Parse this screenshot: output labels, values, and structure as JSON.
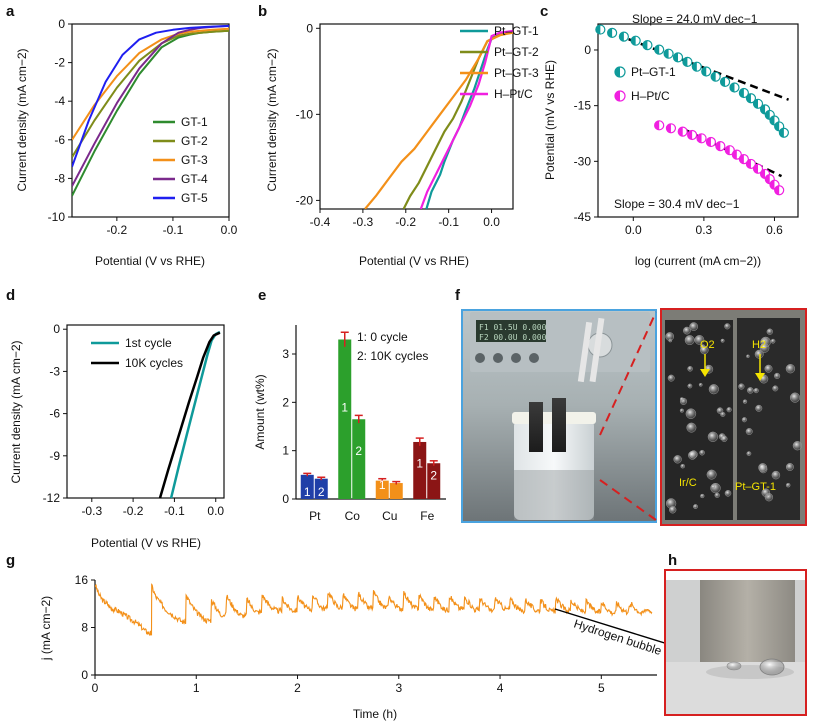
{
  "panels": {
    "a": "a",
    "b": "b",
    "c": "c",
    "d": "d",
    "e": "e",
    "f": "f",
    "g": "g",
    "h": "h"
  },
  "chart_data": [
    {
      "id": "a",
      "type": "line",
      "xlabel": "Potential (V vs RHE)",
      "ylabel": "Current density (mA cm−2)",
      "xlim": [
        -0.28,
        0.0
      ],
      "ylim": [
        -10,
        0
      ],
      "xticks": [
        "-0.2",
        "-0.1",
        "0.0"
      ],
      "xtick_values": [
        -0.2,
        -0.1,
        0.0
      ],
      "yticks": [
        "0",
        "-2",
        "-4",
        "-6",
        "-8",
        "-10"
      ],
      "ytick_values": [
        0,
        -2,
        -4,
        -6,
        -8,
        -10
      ],
      "legend_position": "bottom-right",
      "series": [
        {
          "name": "GT-1",
          "color": "#2e8b2e",
          "x": [
            -0.28,
            -0.24,
            -0.2,
            -0.16,
            -0.12,
            -0.09,
            -0.07,
            -0.05,
            -0.03,
            0.0
          ],
          "y": [
            -8.9,
            -6.6,
            -4.5,
            -2.6,
            -1.2,
            -0.7,
            -0.55,
            -0.45,
            -0.4,
            -0.35
          ]
        },
        {
          "name": "GT-2",
          "color": "#7f8c1a",
          "x": [
            -0.28,
            -0.24,
            -0.2,
            -0.16,
            -0.12,
            -0.09,
            -0.07,
            -0.05,
            -0.03,
            0.0
          ],
          "y": [
            -6.9,
            -5.0,
            -3.3,
            -1.9,
            -1.0,
            -0.6,
            -0.5,
            -0.45,
            -0.4,
            -0.35
          ]
        },
        {
          "name": "GT-3",
          "color": "#f39019",
          "x": [
            -0.28,
            -0.24,
            -0.2,
            -0.16,
            -0.12,
            -0.09,
            -0.07,
            -0.05,
            -0.03,
            0.0
          ],
          "y": [
            -6.0,
            -4.2,
            -2.7,
            -1.5,
            -0.8,
            -0.5,
            -0.4,
            -0.35,
            -0.3,
            -0.25
          ]
        },
        {
          "name": "GT-4",
          "color": "#7b2a8c",
          "x": [
            -0.28,
            -0.24,
            -0.2,
            -0.16,
            -0.12,
            -0.09,
            -0.07,
            -0.05,
            -0.03,
            0.0
          ],
          "y": [
            -8.4,
            -6.2,
            -4.1,
            -2.3,
            -1.0,
            -0.45,
            -0.3,
            -0.2,
            -0.15,
            -0.1
          ]
        },
        {
          "name": "GT-5",
          "color": "#1f1ff0",
          "x": [
            -0.28,
            -0.25,
            -0.22,
            -0.19,
            -0.16,
            -0.13,
            -0.1,
            -0.07,
            -0.04,
            0.0
          ],
          "y": [
            -7.4,
            -5.0,
            -3.0,
            -1.6,
            -0.8,
            -0.45,
            -0.3,
            -0.2,
            -0.15,
            -0.1
          ]
        }
      ]
    },
    {
      "id": "b",
      "type": "line",
      "xlabel": "Potential (V vs RHE)",
      "ylabel": "Current density (mA cm−2)",
      "xlim": [
        -0.4,
        0.05
      ],
      "ylim": [
        -21,
        0.5
      ],
      "xticks": [
        "-0.4",
        "-0.3",
        "-0.2",
        "-0.1",
        "0.0"
      ],
      "xtick_values": [
        -0.4,
        -0.3,
        -0.2,
        -0.1,
        0.0
      ],
      "yticks": [
        "0",
        "-10",
        "-20"
      ],
      "ytick_values": [
        0,
        -10,
        -20
      ],
      "legend_position": "top-right",
      "series": [
        {
          "name": "Pt–GT-1",
          "color": "#0f9a9a",
          "x": [
            -0.152,
            -0.14,
            -0.12,
            -0.11,
            -0.09,
            -0.075,
            -0.06,
            -0.04,
            -0.02,
            -0.01,
            0.0,
            0.02,
            0.05
          ],
          "y": [
            -21,
            -19,
            -17,
            -15.5,
            -13,
            -11.5,
            -9.5,
            -7,
            -4,
            -2.5,
            -1.2,
            -0.6,
            -0.4
          ]
        },
        {
          "name": "Pt–GT-2",
          "color": "#7f8c1a",
          "x": [
            -0.205,
            -0.19,
            -0.17,
            -0.15,
            -0.13,
            -0.11,
            -0.09,
            -0.07,
            -0.05,
            -0.03,
            -0.01,
            0.02,
            0.05
          ],
          "y": [
            -21,
            -19.5,
            -18,
            -16,
            -14,
            -12,
            -10.5,
            -8.5,
            -6,
            -3.5,
            -1.5,
            -0.7,
            -0.5
          ]
        },
        {
          "name": "Pt–GT-3",
          "color": "#f39019",
          "x": [
            -0.295,
            -0.27,
            -0.24,
            -0.21,
            -0.18,
            -0.15,
            -0.12,
            -0.09,
            -0.06,
            -0.03,
            -0.01,
            0.02,
            0.05
          ],
          "y": [
            -21,
            -19.5,
            -17.5,
            -15.5,
            -14,
            -12,
            -10,
            -8,
            -6,
            -3.5,
            -1.5,
            -0.8,
            -0.5
          ]
        },
        {
          "name": "H–Pt/C",
          "color": "#f020e0",
          "x": [
            -0.165,
            -0.15,
            -0.13,
            -0.11,
            -0.09,
            -0.07,
            -0.05,
            -0.03,
            -0.015,
            -0.005,
            0.0,
            0.02,
            0.05
          ],
          "y": [
            -21,
            -19,
            -17,
            -15,
            -13,
            -11,
            -9,
            -6.5,
            -4,
            -2,
            -0.9,
            -0.5,
            -0.3
          ]
        }
      ]
    },
    {
      "id": "c",
      "type": "scatter",
      "xlabel": "log (current (mA cm−2))",
      "ylabel": "Potential (mV vs RHE)",
      "xlim": [
        -0.15,
        0.7
      ],
      "ylim": [
        -45,
        7
      ],
      "xticks": [
        "0.0",
        "0.3",
        "0.6"
      ],
      "xtick_values": [
        0.0,
        0.3,
        0.6
      ],
      "yticks": [
        "0",
        "-15",
        "-30",
        "-45"
      ],
      "ytick_values": [
        0,
        -15,
        -30,
        -45
      ],
      "annotations": [
        "Slope = 24.0 mV dec−1",
        "Slope = 30.4 mV dec−1"
      ],
      "legend_position": "right",
      "series": [
        {
          "name": "Pt–GT-1",
          "color": "#0f9a9a",
          "x": [
            -0.14,
            -0.09,
            -0.04,
            0.01,
            0.06,
            0.11,
            0.15,
            0.19,
            0.23,
            0.27,
            0.31,
            0.35,
            0.39,
            0.43,
            0.47,
            0.5,
            0.53,
            0.56,
            0.58,
            0.6,
            0.62,
            0.64
          ],
          "y": [
            5.5,
            4.6,
            3.6,
            2.5,
            1.3,
            0.1,
            -1.0,
            -2.0,
            -3.2,
            -4.5,
            -5.8,
            -7.2,
            -8.6,
            -10.1,
            -11.6,
            -13.0,
            -14.5,
            -16.0,
            -17.5,
            -19.0,
            -20.6,
            -22.3
          ]
        },
        {
          "name": "H–Pt/C",
          "color": "#f020e0",
          "x": [
            0.11,
            0.16,
            0.21,
            0.25,
            0.29,
            0.33,
            0.37,
            0.41,
            0.44,
            0.47,
            0.5,
            0.53,
            0.56,
            0.58,
            0.6,
            0.62
          ],
          "y": [
            -20.3,
            -21.1,
            -22.0,
            -22.9,
            -23.8,
            -24.8,
            -25.9,
            -27.0,
            -28.2,
            -29.4,
            -30.7,
            -32.0,
            -33.4,
            -34.8,
            -36.3,
            -37.8
          ]
        }
      ],
      "fits": [
        {
          "x": [
            -0.02,
            0.66
          ],
          "y": [
            2.9,
            -13.4
          ]
        },
        {
          "x": [
            0.22,
            0.63
          ],
          "y": [
            -21.5,
            -34.0
          ]
        }
      ]
    },
    {
      "id": "d",
      "type": "line",
      "xlabel": "Potential (V vs RHE)",
      "ylabel": "Current density (mA cm−2)",
      "xlim": [
        -0.36,
        0.02
      ],
      "ylim": [
        -12,
        0.3
      ],
      "xticks": [
        "-0.3",
        "-0.2",
        "-0.1",
        "0.0"
      ],
      "xtick_values": [
        -0.3,
        -0.2,
        -0.1,
        0.0
      ],
      "yticks": [
        "0",
        "-3",
        "-6",
        "-9",
        "-12"
      ],
      "ytick_values": [
        0,
        -3,
        -6,
        -9,
        -12
      ],
      "legend_position": "top-right",
      "series": [
        {
          "name": "1st cycle",
          "color": "#0f9a9a",
          "x": [
            -0.108,
            -0.09,
            -0.07,
            -0.05,
            -0.035,
            -0.02,
            -0.01,
            0.0,
            0.01
          ],
          "y": [
            -12,
            -9.8,
            -7.5,
            -5.2,
            -3.5,
            -1.8,
            -0.8,
            -0.35,
            -0.2
          ]
        },
        {
          "name": "10K cycles",
          "color": "#000000",
          "x": [
            -0.135,
            -0.115,
            -0.09,
            -0.065,
            -0.045,
            -0.03,
            -0.015,
            -0.005,
            0.01
          ],
          "y": [
            -12,
            -10.0,
            -7.6,
            -5.2,
            -3.4,
            -2.0,
            -0.9,
            -0.45,
            -0.25
          ]
        }
      ]
    },
    {
      "id": "e",
      "type": "bar",
      "ylabel": "Amount (wt%)",
      "categories": [
        "Pt",
        "Co",
        "Cu",
        "Fe"
      ],
      "ylim": [
        0,
        3.6
      ],
      "yticks": [
        "0",
        "1",
        "2",
        "3"
      ],
      "ytick_values": [
        0,
        1,
        2,
        3
      ],
      "legend": [
        "1: 0 cycle",
        "2: 10K cycles"
      ],
      "bar_labels": [
        "1",
        "2"
      ],
      "colors": [
        "#1f3fa8",
        "#2ca02c",
        "#f39019",
        "#8b1515"
      ],
      "series": [
        {
          "name": "0 cycle",
          "values": [
            0.5,
            3.3,
            0.38,
            1.18
          ],
          "errors": [
            0.03,
            0.15,
            0.04,
            0.08
          ]
        },
        {
          "name": "10K cycles",
          "values": [
            0.42,
            1.65,
            0.33,
            0.74
          ],
          "errors": [
            0.03,
            0.08,
            0.03,
            0.05
          ]
        }
      ]
    },
    {
      "id": "g",
      "type": "line",
      "xlabel": "Time (h)",
      "ylabel": "j (mA cm−2)",
      "xlim": [
        0,
        5.55
      ],
      "ylim": [
        0,
        16
      ],
      "xticks": [
        "0",
        "1",
        "2",
        "3",
        "4",
        "5"
      ],
      "xtick_values": [
        0,
        1,
        2,
        3,
        4,
        5
      ],
      "yticks": [
        "0",
        "8",
        "16"
      ],
      "ytick_values": [
        0,
        8,
        16
      ],
      "annotations": [
        "Hydrogen bubble"
      ],
      "series": [
        {
          "name": "j",
          "color": "#f39019",
          "x": [
            0.0,
            0.04,
            0.08,
            0.12,
            0.16,
            0.2,
            0.25,
            0.3,
            0.35,
            0.4,
            0.45,
            0.5,
            0.54,
            0.56,
            0.6,
            0.65,
            0.7,
            0.75,
            0.8,
            0.86,
            0.9,
            0.95,
            1.0,
            1.05,
            1.1,
            1.15,
            1.2,
            1.24,
            1.3,
            1.35,
            1.4,
            1.45,
            1.5,
            1.55,
            1.6,
            1.65,
            1.7,
            1.75,
            1.8,
            1.85,
            1.9,
            1.95,
            2.0,
            2.05,
            2.1,
            2.15,
            2.2,
            2.25,
            2.3,
            2.35,
            2.4,
            2.45,
            2.5,
            2.55,
            2.6,
            2.65,
            2.7,
            2.75,
            2.8,
            2.85,
            2.9,
            2.95,
            3.0,
            3.05,
            3.1,
            3.15,
            3.2,
            3.25,
            3.3,
            3.35,
            3.4,
            3.45,
            3.5,
            3.55,
            3.6,
            3.65,
            3.7,
            3.75,
            3.8,
            3.85,
            3.9,
            3.95,
            4.0,
            4.05,
            4.1,
            4.15,
            4.2,
            4.25,
            4.3,
            4.35,
            4.4,
            4.45,
            4.5,
            4.55,
            4.6,
            4.65,
            4.7,
            4.75,
            4.8,
            4.85,
            4.9,
            4.95,
            5.0,
            5.05,
            5.1,
            5.15,
            5.2,
            5.25,
            5.3,
            5.35,
            5.4,
            5.45,
            5.5
          ],
          "y": [
            15.3,
            13.5,
            12.5,
            12.0,
            11.2,
            11.0,
            10.6,
            10.0,
            9.4,
            8.9,
            8.2,
            7.4,
            7.0,
            15.0,
            13.2,
            12.1,
            11.0,
            10.4,
            9.7,
            9.0,
            13.4,
            11.8,
            10.6,
            9.8,
            9.2,
            12.6,
            11.2,
            10.2,
            13.3,
            11.9,
            10.7,
            10.0,
            12.8,
            11.4,
            10.6,
            13.5,
            12.2,
            11.3,
            10.8,
            12.9,
            11.6,
            10.9,
            13.2,
            12.0,
            11.1,
            13.6,
            12.1,
            11.2,
            14.0,
            12.6,
            11.4,
            13.5,
            12.2,
            11.2,
            13.8,
            12.4,
            11.3,
            13.9,
            12.5,
            11.4,
            13.2,
            12.1,
            11.2,
            13.9,
            12.4,
            11.3,
            13.5,
            12.2,
            11.1,
            13.2,
            12.0,
            11.0,
            13.3,
            12.1,
            11.2,
            13.0,
            12.0,
            11.0,
            12.9,
            11.8,
            10.9,
            13.0,
            11.9,
            11.1,
            12.8,
            11.7,
            10.8,
            12.7,
            11.7,
            10.9,
            12.6,
            11.5,
            10.7,
            12.9,
            11.8,
            10.9,
            12.5,
            11.5,
            10.8,
            12.4,
            11.4,
            10.6,
            12.3,
            11.3,
            10.5,
            12.2,
            11.2,
            10.6,
            11.9,
            11.0,
            10.3,
            11.2,
            10.6
          ]
        }
      ]
    }
  ],
  "photo_f": {
    "caption_labels": [
      "O2",
      "H2",
      "Ir/C",
      "Pt–GT-1"
    ],
    "frame_colors": [
      "#4aa3df",
      "#d62020"
    ],
    "display_text": [
      "F1 01.5U 0.000",
      "F2 00.0U 0.000"
    ]
  },
  "photo_h": {
    "frame_color": "#d62020"
  }
}
